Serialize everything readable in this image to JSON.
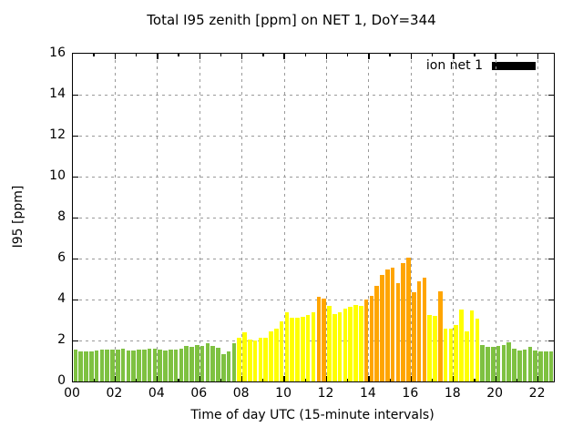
{
  "title": "Total I95 zenith [ppm] on NET 1, DoY=344",
  "legend": {
    "label": "ion net 1",
    "swatch_color": "#000000"
  },
  "chart_data": {
    "type": "bar",
    "title": "Total I95 zenith [ppm] on NET 1, DoY=344",
    "xlabel": "Time of day UTC (15-minute intervals)",
    "ylabel": "I95 [ppm]",
    "ylim": [
      0,
      16
    ],
    "xlim_hours": [
      0,
      22.75
    ],
    "grid": true,
    "legend_position": "top-right-inside",
    "interval_minutes": 15,
    "y_ticks": [
      0,
      2,
      4,
      6,
      8,
      10,
      12,
      14,
      16
    ],
    "x_ticks": [
      {
        "hour": 0,
        "label": "00"
      },
      {
        "hour": 2,
        "label": "02"
      },
      {
        "hour": 4,
        "label": "04"
      },
      {
        "hour": 6,
        "label": "06"
      },
      {
        "hour": 8,
        "label": "08"
      },
      {
        "hour": 10,
        "label": "10"
      },
      {
        "hour": 12,
        "label": "12"
      },
      {
        "hour": 14,
        "label": "14"
      },
      {
        "hour": 16,
        "label": "16"
      },
      {
        "hour": 18,
        "label": "18"
      },
      {
        "hour": 20,
        "label": "20"
      },
      {
        "hour": 22,
        "label": "22"
      }
    ],
    "palette": {
      "g": "#7ec141",
      "y": "#ffff00",
      "o": "#ffa500"
    },
    "series": [
      {
        "name": "ion net 1",
        "times": [
          "00:00",
          "00:15",
          "00:30",
          "00:45",
          "01:00",
          "01:15",
          "01:30",
          "01:45",
          "02:00",
          "02:15",
          "02:30",
          "02:45",
          "03:00",
          "03:15",
          "03:30",
          "03:45",
          "04:00",
          "04:15",
          "04:30",
          "04:45",
          "05:00",
          "05:15",
          "05:30",
          "05:45",
          "06:00",
          "06:15",
          "06:30",
          "06:45",
          "07:00",
          "07:15",
          "07:30",
          "07:45",
          "08:00",
          "08:15",
          "08:30",
          "08:45",
          "09:00",
          "09:15",
          "09:30",
          "09:45",
          "10:00",
          "10:15",
          "10:30",
          "10:45",
          "11:00",
          "11:15",
          "11:30",
          "11:45",
          "12:00",
          "12:15",
          "12:30",
          "12:45",
          "13:00",
          "13:15",
          "13:30",
          "13:45",
          "14:00",
          "14:15",
          "14:30",
          "14:45",
          "15:00",
          "15:15",
          "15:30",
          "15:45",
          "16:00",
          "16:15",
          "16:30",
          "16:45",
          "17:00",
          "17:15",
          "17:30",
          "17:45",
          "18:00",
          "18:15",
          "18:30",
          "18:45",
          "19:00",
          "19:15",
          "19:30",
          "19:45",
          "20:00",
          "20:15",
          "20:30",
          "20:45",
          "21:00",
          "21:15",
          "21:30",
          "21:45",
          "22:00",
          "22:15",
          "22:30"
        ],
        "values": [
          1.55,
          1.45,
          1.45,
          1.45,
          1.5,
          1.55,
          1.55,
          1.55,
          1.55,
          1.6,
          1.5,
          1.5,
          1.55,
          1.55,
          1.6,
          1.6,
          1.55,
          1.5,
          1.55,
          1.55,
          1.6,
          1.75,
          1.7,
          1.8,
          1.75,
          1.85,
          1.75,
          1.65,
          1.35,
          1.45,
          1.85,
          2.15,
          2.4,
          2.05,
          2.0,
          2.15,
          2.15,
          2.45,
          2.6,
          2.95,
          3.4,
          3.1,
          3.1,
          3.15,
          3.25,
          3.4,
          4.15,
          4.05,
          3.7,
          3.3,
          3.4,
          3.55,
          3.65,
          3.75,
          3.7,
          4.0,
          4.2,
          4.65,
          5.2,
          5.45,
          5.55,
          4.8,
          5.8,
          6.05,
          4.35,
          4.9,
          5.05,
          3.25,
          3.2,
          4.4,
          2.6,
          2.6,
          2.75,
          3.5,
          2.45,
          3.45,
          3.05,
          1.8,
          1.7,
          1.7,
          1.75,
          1.8,
          1.9,
          1.6,
          1.5,
          1.55,
          1.7,
          1.5,
          1.45,
          1.45,
          1.45
        ],
        "colors": [
          "g",
          "g",
          "g",
          "g",
          "g",
          "g",
          "g",
          "g",
          "g",
          "g",
          "g",
          "g",
          "g",
          "g",
          "g",
          "g",
          "g",
          "g",
          "g",
          "g",
          "g",
          "g",
          "g",
          "g",
          "g",
          "g",
          "g",
          "g",
          "g",
          "g",
          "g",
          "y",
          "y",
          "y",
          "y",
          "y",
          "y",
          "y",
          "y",
          "y",
          "y",
          "y",
          "y",
          "y",
          "y",
          "y",
          "o",
          "o",
          "y",
          "y",
          "y",
          "y",
          "y",
          "y",
          "y",
          "o",
          "o",
          "o",
          "o",
          "o",
          "o",
          "o",
          "o",
          "o",
          "o",
          "o",
          "o",
          "y",
          "y",
          "o",
          "y",
          "y",
          "y",
          "y",
          "y",
          "y",
          "y",
          "g",
          "g",
          "g",
          "g",
          "g",
          "g",
          "g",
          "g",
          "g",
          "g",
          "g",
          "g",
          "g",
          "g"
        ]
      }
    ]
  }
}
